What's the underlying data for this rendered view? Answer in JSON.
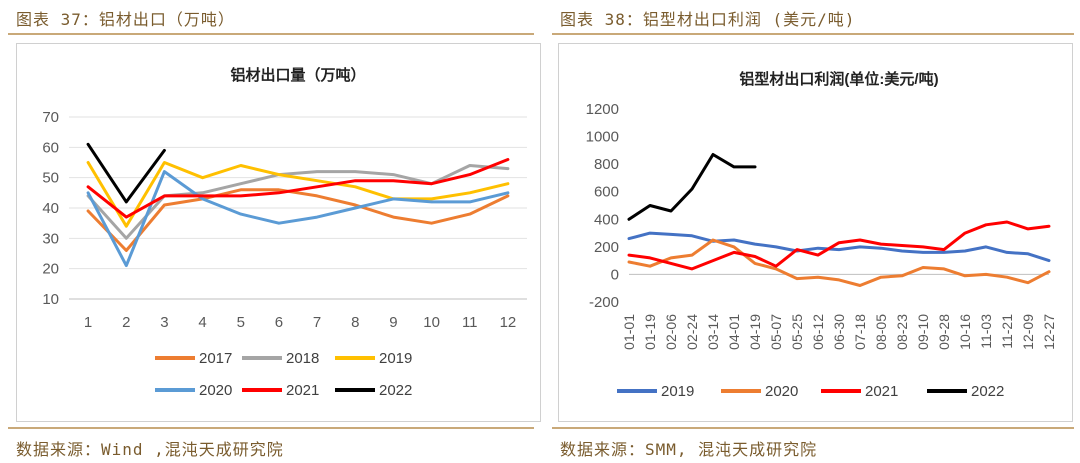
{
  "left": {
    "header": "图表 37：铝材出口（万吨）",
    "source": "数据来源：Wind ,混沌天成研究院"
  },
  "right": {
    "header": "图表 38：铝型材出口利润  (美元/吨)",
    "source": "数据来源：SMM, 混沌天成研究院"
  },
  "chart_data": [
    {
      "type": "line",
      "title": "铝材出口量（万吨）",
      "x": [
        "1",
        "2",
        "3",
        "4",
        "5",
        "6",
        "7",
        "8",
        "9",
        "10",
        "11",
        "12"
      ],
      "ylim": [
        10,
        70
      ],
      "yticks": [
        10,
        20,
        30,
        40,
        50,
        60,
        70
      ],
      "legend_position": "bottom",
      "series": [
        {
          "name": "2017",
          "color": "#ED7D31",
          "values": [
            39,
            26,
            41,
            43,
            46,
            46,
            44,
            41,
            37,
            35,
            38,
            44
          ]
        },
        {
          "name": "2018",
          "color": "#A5A5A5",
          "values": [
            44,
            30,
            44,
            45,
            48,
            51,
            52,
            52,
            51,
            48,
            54,
            53
          ]
        },
        {
          "name": "2019",
          "color": "#FFC000",
          "values": [
            55,
            34,
            55,
            50,
            54,
            51,
            49,
            47,
            43,
            43,
            45,
            48
          ]
        },
        {
          "name": "2020",
          "color": "#5B9BD5",
          "values": [
            45,
            21,
            52,
            43,
            38,
            35,
            37,
            40,
            43,
            42,
            42,
            45
          ]
        },
        {
          "name": "2021",
          "color": "#FF0000",
          "values": [
            47,
            37,
            44,
            44,
            44,
            45,
            47,
            49,
            49,
            48,
            51,
            56
          ]
        },
        {
          "name": "2022",
          "color": "#000000",
          "values": [
            61,
            42,
            59,
            null,
            null,
            null,
            null,
            null,
            null,
            null,
            null,
            null
          ]
        }
      ]
    },
    {
      "type": "line",
      "title": "铝型材出口利润(单位:美元/吨)",
      "x": [
        "01-01",
        "01-19",
        "02-06",
        "02-24",
        "03-14",
        "04-01",
        "04-19",
        "05-07",
        "05-25",
        "06-12",
        "06-30",
        "07-18",
        "08-05",
        "08-23",
        "09-10",
        "09-28",
        "10-16",
        "11-03",
        "11-21",
        "12-09",
        "12-27"
      ],
      "ylim": [
        -200,
        1200
      ],
      "yticks": [
        -200,
        0,
        200,
        400,
        600,
        800,
        1000,
        1200
      ],
      "legend_position": "bottom",
      "series": [
        {
          "name": "2019",
          "color": "#4472C4",
          "values": [
            260,
            300,
            290,
            280,
            240,
            250,
            220,
            200,
            170,
            190,
            180,
            200,
            190,
            170,
            160,
            160,
            170,
            200,
            160,
            150,
            100
          ]
        },
        {
          "name": "2020",
          "color": "#ED7D31",
          "values": [
            90,
            60,
            120,
            140,
            250,
            200,
            80,
            40,
            -30,
            -20,
            -40,
            -80,
            -20,
            -10,
            50,
            40,
            -10,
            0,
            -20,
            -60,
            20
          ]
        },
        {
          "name": "2021",
          "color": "#FF0000",
          "values": [
            140,
            120,
            80,
            40,
            100,
            160,
            130,
            60,
            180,
            140,
            230,
            250,
            220,
            210,
            200,
            180,
            300,
            360,
            380,
            330,
            350
          ]
        },
        {
          "name": "2022",
          "color": "#000000",
          "values": [
            400,
            500,
            460,
            620,
            870,
            780,
            780,
            null,
            null,
            null,
            null,
            null,
            null,
            null,
            null,
            null,
            null,
            null,
            null,
            null,
            null
          ]
        }
      ]
    }
  ]
}
